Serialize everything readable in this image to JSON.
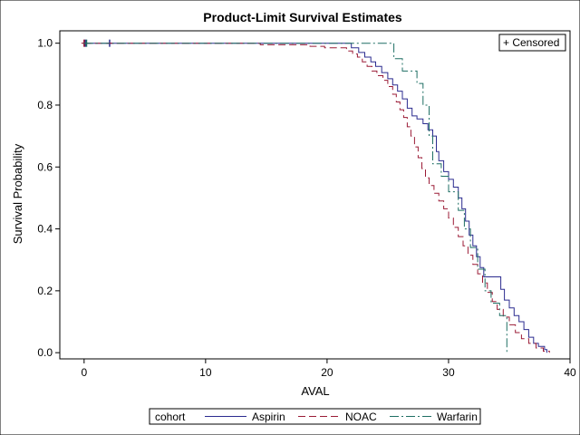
{
  "chart_data": {
    "type": "line",
    "step": true,
    "title": "Product-Limit Survival Estimates",
    "xlabel": "AVAL",
    "ylabel": "Survival Probability",
    "xlim": [
      -2,
      40
    ],
    "ylim": [
      -0.02,
      1.04
    ],
    "xticks": [
      "0",
      "10",
      "20",
      "30",
      "40"
    ],
    "yticks": [
      "0.0",
      "0.2",
      "0.4",
      "0.6",
      "0.8",
      "1.0"
    ],
    "grid": false,
    "censor_inset": "+ Censored",
    "legend": {
      "title": "cohort",
      "placement": "bottom"
    },
    "series": [
      {
        "name": "Aspirin",
        "color": "#2b2b8f",
        "dash": "solid",
        "points": [
          [
            0,
            1.0
          ],
          [
            22.0,
            0.985
          ],
          [
            22.6,
            0.97
          ],
          [
            23.1,
            0.955
          ],
          [
            23.6,
            0.94
          ],
          [
            24.0,
            0.925
          ],
          [
            24.5,
            0.905
          ],
          [
            25.0,
            0.885
          ],
          [
            25.4,
            0.865
          ],
          [
            25.8,
            0.845
          ],
          [
            26.2,
            0.82
          ],
          [
            26.6,
            0.79
          ],
          [
            27.0,
            0.765
          ],
          [
            27.4,
            0.755
          ],
          [
            27.9,
            0.74
          ],
          [
            28.3,
            0.72
          ],
          [
            28.7,
            0.7
          ],
          [
            29.0,
            0.65
          ],
          [
            29.2,
            0.62
          ],
          [
            29.6,
            0.585
          ],
          [
            30.0,
            0.56
          ],
          [
            30.4,
            0.535
          ],
          [
            30.8,
            0.5
          ],
          [
            31.1,
            0.465
          ],
          [
            31.4,
            0.425
          ],
          [
            31.7,
            0.38
          ],
          [
            32.0,
            0.345
          ],
          [
            32.3,
            0.31
          ],
          [
            32.6,
            0.275
          ],
          [
            32.9,
            0.245
          ],
          [
            34.3,
            0.205
          ],
          [
            34.6,
            0.17
          ],
          [
            35.0,
            0.145
          ],
          [
            35.4,
            0.12
          ],
          [
            35.8,
            0.1
          ],
          [
            36.2,
            0.075
          ],
          [
            36.6,
            0.05
          ],
          [
            37.0,
            0.03
          ],
          [
            37.4,
            0.02
          ],
          [
            37.9,
            0.01
          ],
          [
            38.1,
            0.0
          ]
        ],
        "censored": [
          [
            0.1,
            1.0
          ],
          [
            2.1,
            1.0
          ]
        ]
      },
      {
        "name": "NOAC",
        "color": "#9b1b36",
        "dash": "8,4",
        "points": [
          [
            0,
            1.0
          ],
          [
            14.5,
            0.995
          ],
          [
            18.6,
            0.99
          ],
          [
            19.8,
            0.985
          ],
          [
            21.6,
            0.975
          ],
          [
            22.1,
            0.965
          ],
          [
            22.5,
            0.955
          ],
          [
            22.9,
            0.94
          ],
          [
            23.3,
            0.925
          ],
          [
            23.7,
            0.91
          ],
          [
            24.1,
            0.895
          ],
          [
            24.6,
            0.88
          ],
          [
            25.0,
            0.86
          ],
          [
            25.4,
            0.835
          ],
          [
            25.7,
            0.81
          ],
          [
            26.0,
            0.785
          ],
          [
            26.3,
            0.76
          ],
          [
            26.6,
            0.73
          ],
          [
            26.9,
            0.7
          ],
          [
            27.2,
            0.665
          ],
          [
            27.5,
            0.63
          ],
          [
            27.8,
            0.595
          ],
          [
            28.1,
            0.565
          ],
          [
            28.4,
            0.54
          ],
          [
            28.8,
            0.515
          ],
          [
            29.2,
            0.49
          ],
          [
            29.6,
            0.465
          ],
          [
            30.0,
            0.435
          ],
          [
            30.4,
            0.405
          ],
          [
            30.8,
            0.375
          ],
          [
            31.2,
            0.345
          ],
          [
            31.6,
            0.315
          ],
          [
            32.0,
            0.285
          ],
          [
            32.4,
            0.255
          ],
          [
            32.8,
            0.225
          ],
          [
            33.2,
            0.195
          ],
          [
            33.6,
            0.165
          ],
          [
            34.0,
            0.14
          ],
          [
            34.5,
            0.115
          ],
          [
            35.0,
            0.09
          ],
          [
            35.5,
            0.065
          ],
          [
            36.0,
            0.045
          ],
          [
            36.6,
            0.03
          ],
          [
            37.2,
            0.015
          ],
          [
            37.8,
            0.005
          ],
          [
            38.3,
            0.0
          ]
        ],
        "censored": [
          [
            0.0,
            1.0
          ]
        ]
      },
      {
        "name": "Warfarin",
        "color": "#1f6f64",
        "dash": "10,3,2,3",
        "points": [
          [
            0,
            1.0
          ],
          [
            22.5,
            1.0
          ],
          [
            25.5,
            0.95
          ],
          [
            26.2,
            0.91
          ],
          [
            27.4,
            0.87
          ],
          [
            27.9,
            0.8
          ],
          [
            28.4,
            0.7
          ],
          [
            28.7,
            0.61
          ],
          [
            29.4,
            0.57
          ],
          [
            30.0,
            0.52
          ],
          [
            30.8,
            0.46
          ],
          [
            31.3,
            0.4
          ],
          [
            31.8,
            0.34
          ],
          [
            32.4,
            0.27
          ],
          [
            33.0,
            0.2
          ],
          [
            33.5,
            0.16
          ],
          [
            34.2,
            0.12
          ],
          [
            34.8,
            0.09
          ],
          [
            34.8,
            0.0
          ]
        ],
        "censored": [
          [
            0.2,
            1.0
          ]
        ]
      }
    ]
  }
}
